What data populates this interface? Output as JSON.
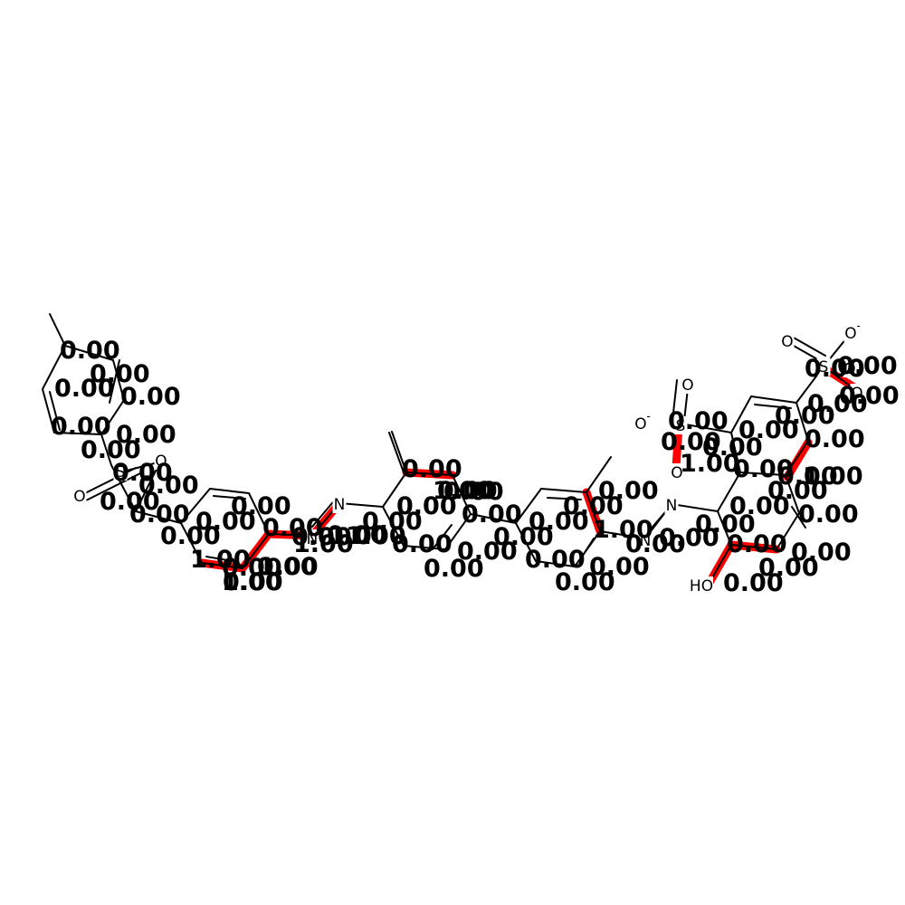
{
  "colors": {
    "bond": "#000000",
    "highlight": "#ff0000",
    "background": "#ffffff"
  },
  "molecule": {
    "atoms": [
      {
        "symbol": "O"
      },
      {
        "symbol": "O"
      },
      {
        "symbol": "O",
        "charge": "-"
      },
      {
        "symbol": "O",
        "charge": "-"
      },
      {
        "symbol": "O"
      },
      {
        "symbol": "O"
      },
      {
        "symbol": "O"
      },
      {
        "symbol": "O"
      },
      {
        "symbol": "O"
      },
      {
        "symbol": "S"
      },
      {
        "symbol": "S"
      },
      {
        "symbol": "S"
      },
      {
        "symbol": "N"
      },
      {
        "symbol": "N"
      },
      {
        "symbol": "N"
      },
      {
        "symbol": "N"
      },
      {
        "symbol": "HO"
      }
    ],
    "bond_labels": [
      "0.00",
      "0.00",
      "0.00",
      "0.00",
      "0.00",
      "0.00",
      "0.00",
      "0.00",
      "0.00",
      "0.00",
      "0.00",
      "0.00",
      "0.00",
      "0.00",
      "0.00",
      "1.00",
      "1.00",
      "0.00",
      "0.00",
      "1.00",
      "1.00",
      "0.00",
      "0.00",
      "0.00",
      "1.00",
      "0.00",
      "0.00",
      "0.00",
      "0.00",
      "0.00",
      "0.00",
      "0.00",
      "0.00",
      "0.00",
      "0.00",
      "0.00",
      "0.00",
      "1.00",
      "0.00",
      "0.00",
      "0.00",
      "0.00",
      "0.00",
      "0.00",
      "0.00",
      "0.00",
      "0.00",
      "0.00",
      "0.00",
      "0.00",
      "0.00",
      "0.00",
      "0.00",
      "0.00",
      "1.00",
      "0.00",
      "0.00",
      "0.00",
      "0.00",
      "1.00",
      "0.00",
      "1.00",
      "0.00",
      "1.00",
      "0.00",
      "0.00",
      "0.00",
      "0.00"
    ]
  }
}
